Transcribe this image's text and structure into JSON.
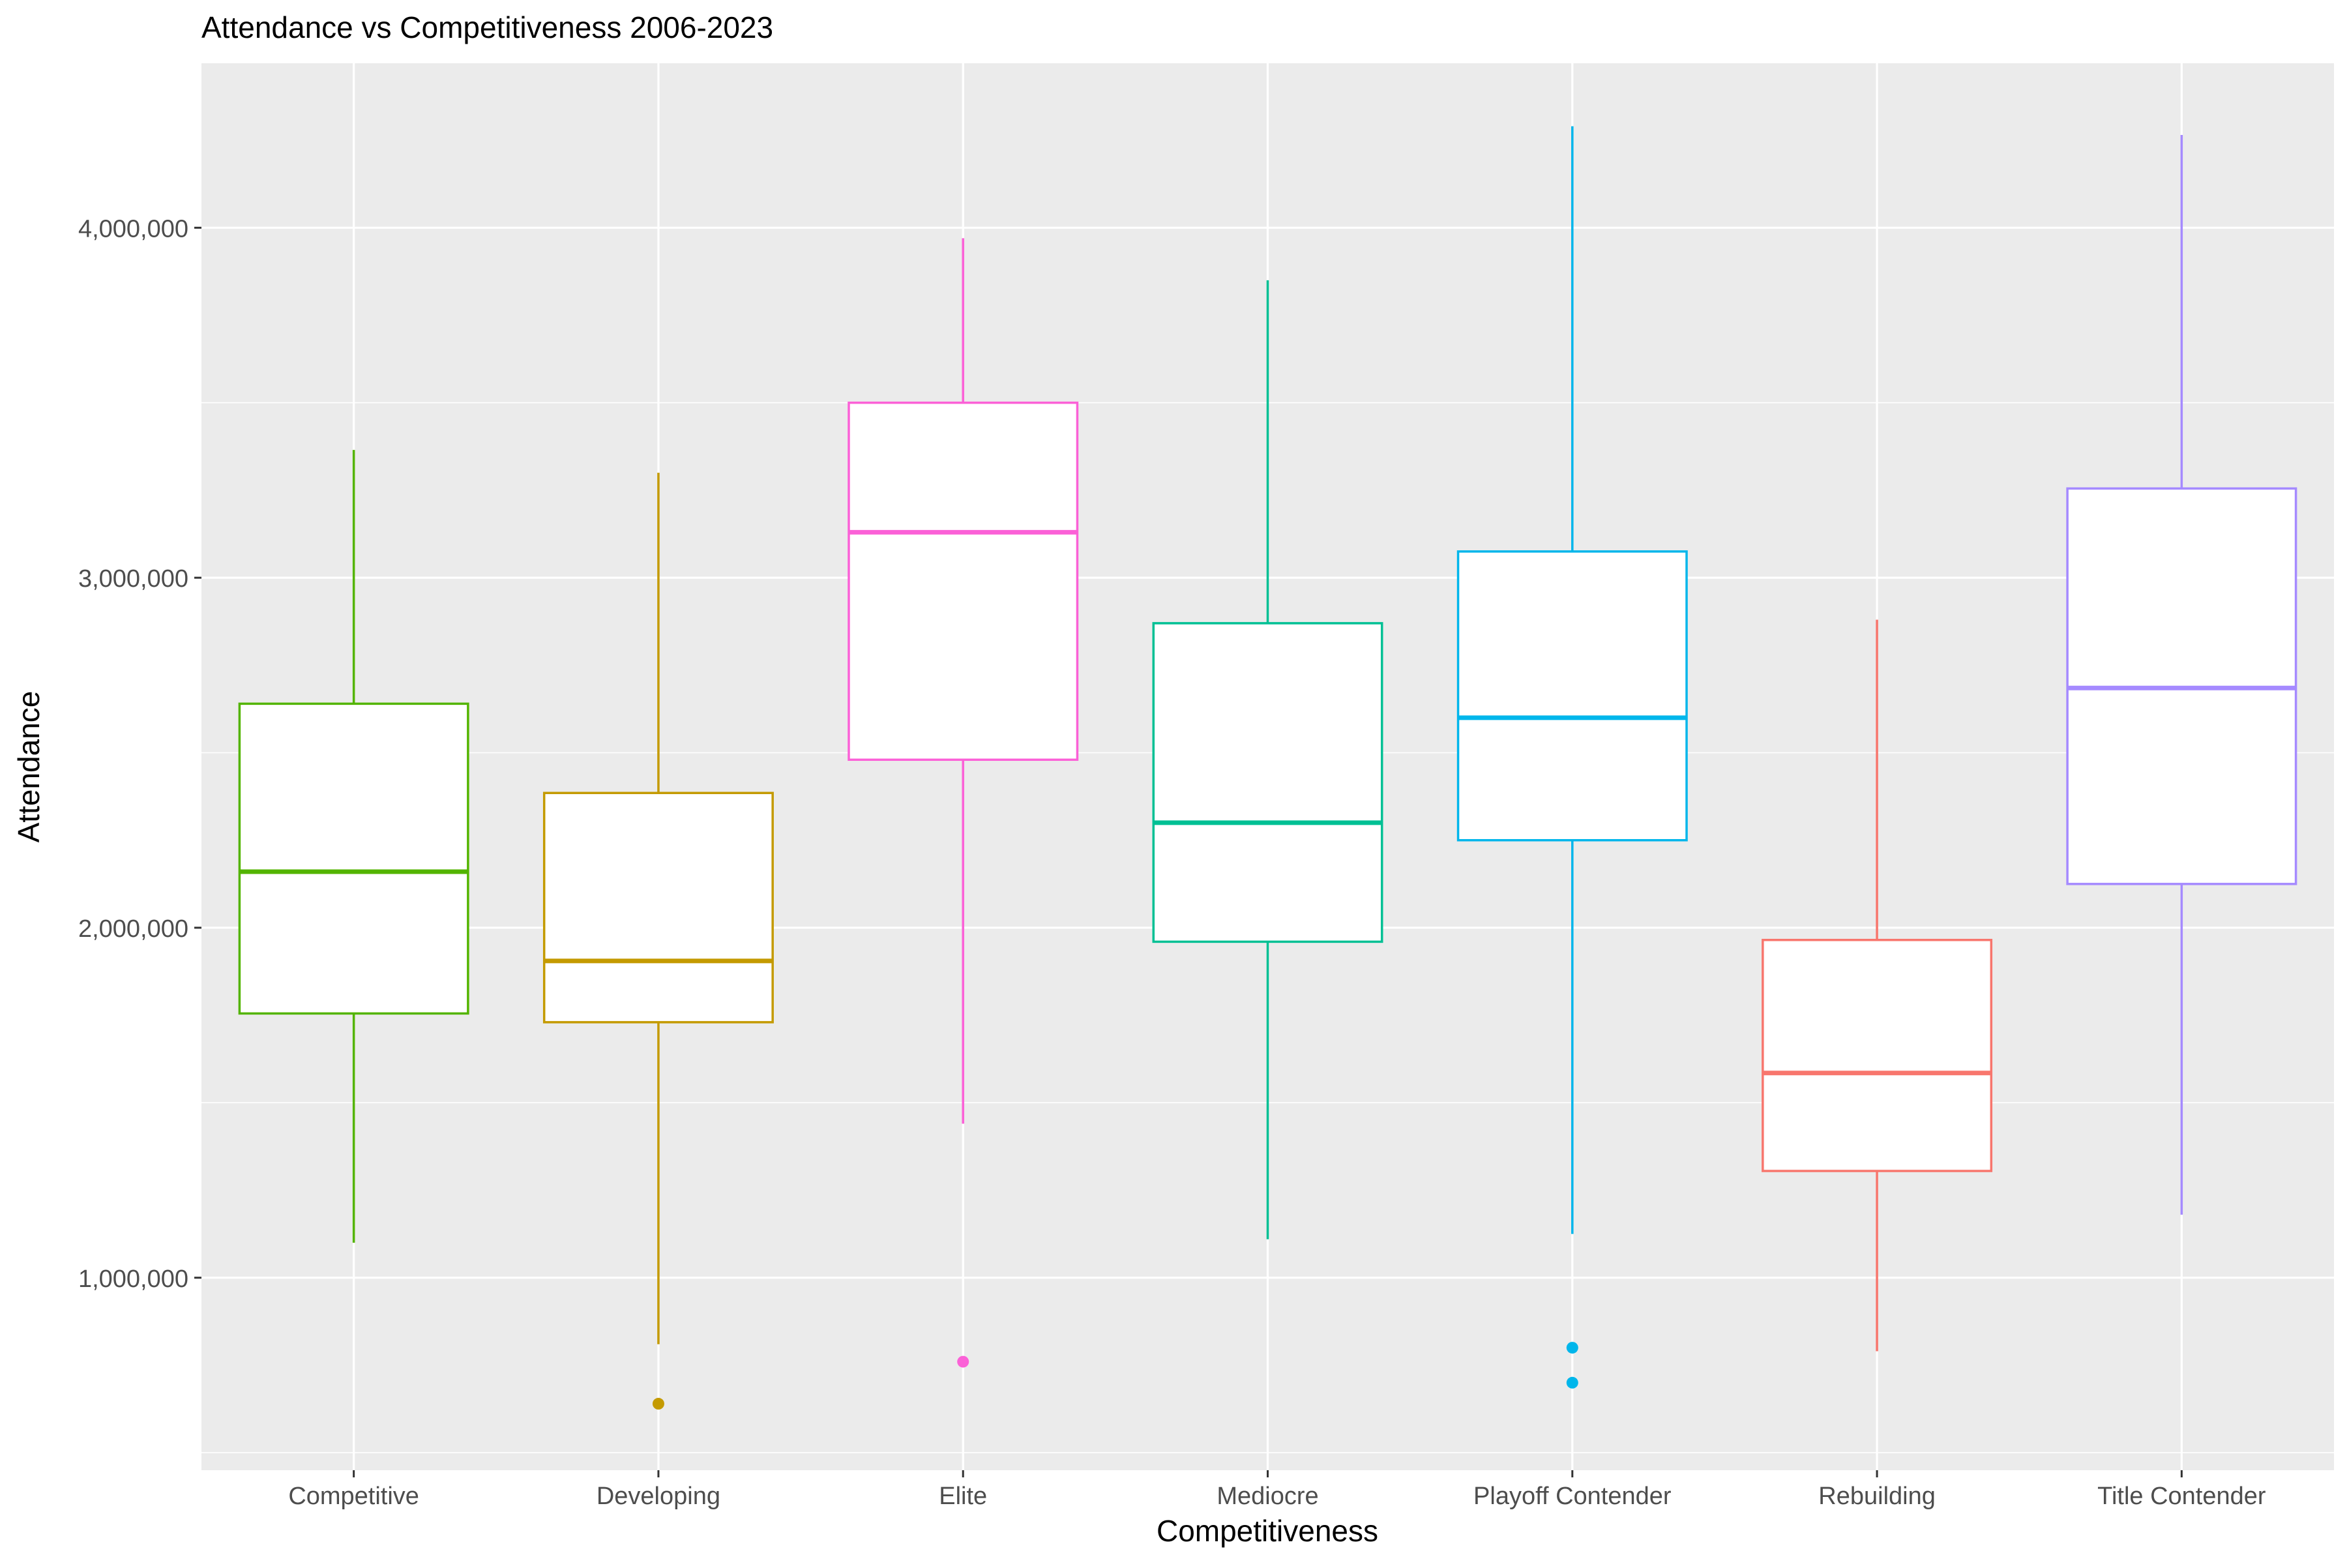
{
  "chart_data": {
    "type": "boxplot",
    "title": "Attendance vs Competitiveness 2006-2023",
    "xlabel": "Competitiveness",
    "ylabel": "Attendance",
    "ylim": [
      450000,
      4470000
    ],
    "y_ticks": [
      1000000,
      2000000,
      3000000,
      4000000
    ],
    "y_tick_labels": [
      "1,000,000",
      "2,000,000",
      "3,000,000",
      "4,000,000"
    ],
    "grid": true,
    "legend": "none",
    "categories": [
      "Competitive",
      "Developing",
      "Elite",
      "Mediocre",
      "Playoff Contender",
      "Rebuilding",
      "Title Contender"
    ],
    "boxes": [
      {
        "category": "Competitive",
        "color": "#53B400",
        "whisker_low": 1100000,
        "q1": 1755000,
        "median": 2160000,
        "q3": 2640000,
        "whisker_high": 3365000,
        "outliers": []
      },
      {
        "category": "Developing",
        "color": "#C49A00",
        "whisker_low": 810000,
        "q1": 1730000,
        "median": 1905000,
        "q3": 2385000,
        "whisker_high": 3300000,
        "outliers": [
          640000
        ]
      },
      {
        "category": "Elite",
        "color": "#FB61D7",
        "whisker_low": 1440000,
        "q1": 2480000,
        "median": 3130000,
        "q3": 3500000,
        "whisker_high": 3970000,
        "outliers": [
          760000
        ]
      },
      {
        "category": "Mediocre",
        "color": "#00C094",
        "whisker_low": 1110000,
        "q1": 1960000,
        "median": 2300000,
        "q3": 2870000,
        "whisker_high": 3850000,
        "outliers": []
      },
      {
        "category": "Playoff Contender",
        "color": "#00B6EB",
        "whisker_low": 1125000,
        "q1": 2250000,
        "median": 2600000,
        "q3": 3075000,
        "whisker_high": 4290000,
        "outliers": [
          800000,
          700000
        ]
      },
      {
        "category": "Rebuilding",
        "color": "#F8766D",
        "whisker_low": 790000,
        "q1": 1305000,
        "median": 1585000,
        "q3": 1965000,
        "whisker_high": 2880000,
        "outliers": []
      },
      {
        "category": "Title Contender",
        "color": "#A58AFF",
        "whisker_low": 1180000,
        "q1": 2125000,
        "median": 2685000,
        "q3": 3255000,
        "whisker_high": 4265000,
        "outliers": []
      }
    ]
  }
}
